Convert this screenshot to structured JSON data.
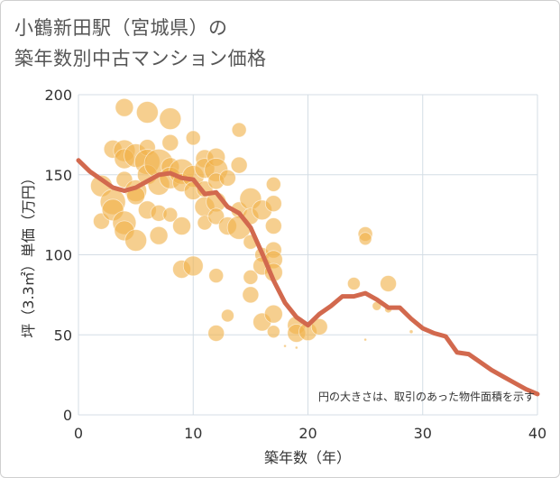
{
  "title": {
    "line1": "小鶴新田駅（宮城県）の",
    "line2": "築年数別中古マンション価格"
  },
  "chart_data": {
    "type": "scatter",
    "title": "小鶴新田駅（宮城県）の築年数別中古マンション価格",
    "xlabel": "築年数（年）",
    "ylabel": "坪（3.3㎡）単価（万円）",
    "xlim": [
      0,
      40
    ],
    "ylim": [
      0,
      200
    ],
    "xticks": [
      0,
      10,
      20,
      30,
      40
    ],
    "yticks": [
      0,
      50,
      100,
      150,
      200
    ],
    "grid": true,
    "note": "円の大きさは、取引のあった物件面積を示す",
    "colors": {
      "bubble": "#f0b24a",
      "line": "#d2694e",
      "grid": "#d4dde5"
    },
    "series": [
      {
        "type": "bubble",
        "points": [
          [
            2,
            143,
            12
          ],
          [
            2,
            121,
            9
          ],
          [
            3,
            166,
            10
          ],
          [
            3,
            133,
            14
          ],
          [
            3,
            128,
            12
          ],
          [
            4,
            192,
            10
          ],
          [
            4,
            165,
            12
          ],
          [
            4,
            160,
            11
          ],
          [
            4,
            147,
            9
          ],
          [
            4,
            120,
            13
          ],
          [
            4,
            115,
            11
          ],
          [
            5,
            162,
            13
          ],
          [
            5,
            140,
            12
          ],
          [
            5,
            137,
            10
          ],
          [
            5,
            109,
            12
          ],
          [
            6,
            189,
            12
          ],
          [
            6,
            167,
            9
          ],
          [
            6,
            158,
            14
          ],
          [
            6,
            150,
            11
          ],
          [
            6,
            128,
            10
          ],
          [
            7,
            157,
            16
          ],
          [
            7,
            144,
            12
          ],
          [
            7,
            126,
            9
          ],
          [
            7,
            112,
            10
          ],
          [
            8,
            185,
            12
          ],
          [
            8,
            170,
            9
          ],
          [
            8,
            155,
            10
          ],
          [
            8,
            148,
            12
          ],
          [
            8,
            125,
            8
          ],
          [
            9,
            152,
            14
          ],
          [
            9,
            145,
            10
          ],
          [
            9,
            118,
            10
          ],
          [
            9,
            91,
            10
          ],
          [
            10,
            173,
            8
          ],
          [
            10,
            149,
            12
          ],
          [
            10,
            140,
            10
          ],
          [
            10,
            93,
            11
          ],
          [
            11,
            160,
            10
          ],
          [
            11,
            154,
            11
          ],
          [
            11,
            141,
            9
          ],
          [
            11,
            130,
            11
          ],
          [
            11,
            120,
            8
          ],
          [
            12,
            161,
            10
          ],
          [
            12,
            153,
            13
          ],
          [
            12,
            146,
            9
          ],
          [
            12,
            133,
            11
          ],
          [
            12,
            124,
            9
          ],
          [
            12,
            87,
            8
          ],
          [
            12,
            51,
            9
          ],
          [
            13,
            148,
            9
          ],
          [
            13,
            118,
            10
          ],
          [
            13,
            62,
            7
          ],
          [
            14,
            178,
            8
          ],
          [
            14,
            156,
            9
          ],
          [
            14,
            128,
            9
          ],
          [
            14,
            117,
            13
          ],
          [
            15,
            135,
            12
          ],
          [
            15,
            124,
            9
          ],
          [
            15,
            108,
            8
          ],
          [
            15,
            86,
            8
          ],
          [
            15,
            75,
            9
          ],
          [
            16,
            128,
            11
          ],
          [
            16,
            100,
            8
          ],
          [
            16,
            93,
            10
          ],
          [
            16,
            58,
            10
          ],
          [
            17,
            144,
            8
          ],
          [
            17,
            132,
            9
          ],
          [
            17,
            118,
            9
          ],
          [
            17,
            103,
            9
          ],
          [
            17,
            97,
            10
          ],
          [
            17,
            89,
            10
          ],
          [
            17,
            63,
            10
          ],
          [
            17,
            52,
            7
          ],
          [
            19,
            56,
            10
          ],
          [
            19,
            51,
            10
          ],
          [
            20,
            52,
            10
          ],
          [
            21,
            55,
            9
          ],
          [
            24,
            82,
            7
          ],
          [
            25,
            113,
            8
          ],
          [
            25,
            110,
            7
          ],
          [
            27,
            82,
            9
          ],
          [
            26,
            68,
            5
          ],
          [
            27,
            66,
            4
          ],
          [
            25,
            47,
            1.5
          ],
          [
            29,
            52,
            2
          ],
          [
            18,
            43,
            1.5
          ],
          [
            19,
            42,
            1.5
          ]
        ]
      },
      {
        "type": "line",
        "x": [
          0,
          1,
          2,
          3,
          4,
          5,
          6,
          7,
          8,
          9,
          10,
          11,
          12,
          13,
          14,
          15,
          16,
          17,
          18,
          19,
          20,
          21,
          22,
          23,
          24,
          25,
          26,
          27,
          28,
          29,
          30,
          31,
          32,
          33,
          34,
          35,
          36,
          37,
          38,
          39,
          40
        ],
        "y": [
          159,
          152,
          147,
          142,
          140,
          142,
          146,
          150,
          151,
          148,
          147,
          138,
          139,
          130,
          126,
          117,
          101,
          84,
          70,
          61,
          56,
          63,
          68,
          74,
          74,
          76,
          72,
          67,
          67,
          60,
          54,
          51,
          49,
          39,
          38,
          33,
          28,
          24,
          20,
          16,
          13
        ]
      }
    ]
  }
}
